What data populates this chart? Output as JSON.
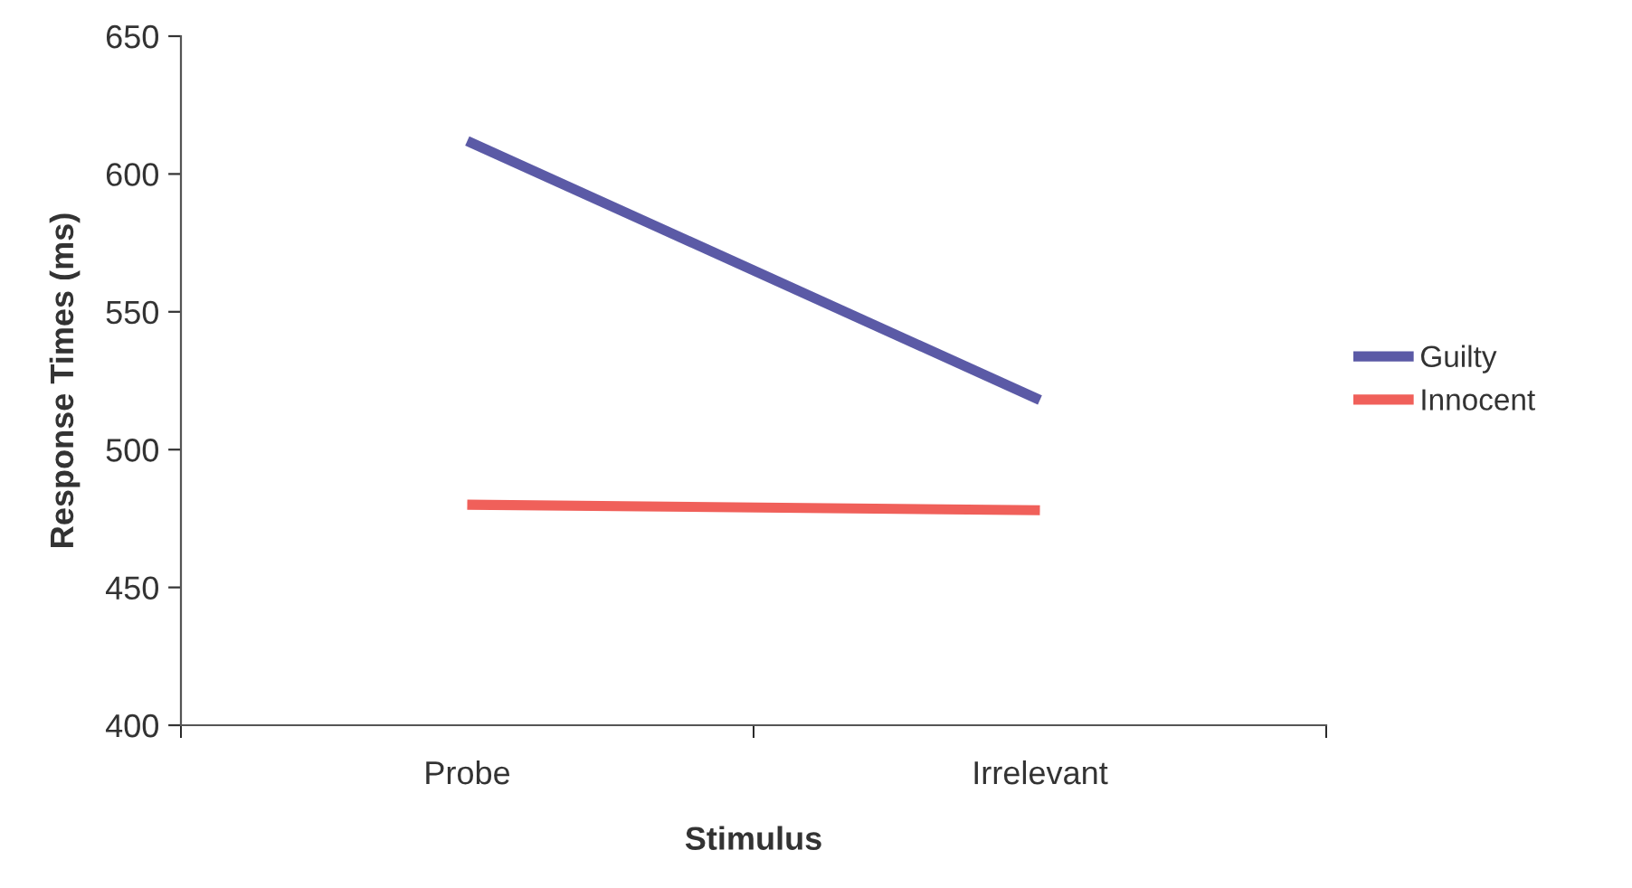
{
  "chart_data": {
    "type": "line",
    "xlabel": "Stimulus",
    "ylabel": "Response Times (ms)",
    "categories": [
      "Probe",
      "Irrelevant"
    ],
    "series": [
      {
        "name": "Guilty",
        "color": "#5b5aa6",
        "values": [
          612,
          518
        ]
      },
      {
        "name": "Innocent",
        "color": "#f0605a",
        "values": [
          480,
          478
        ]
      }
    ],
    "ylim": [
      400,
      650
    ],
    "yticks": [
      400,
      450,
      500,
      550,
      600,
      650
    ],
    "grid": false,
    "legend": "right",
    "marker": "none",
    "line_style": "solid"
  }
}
